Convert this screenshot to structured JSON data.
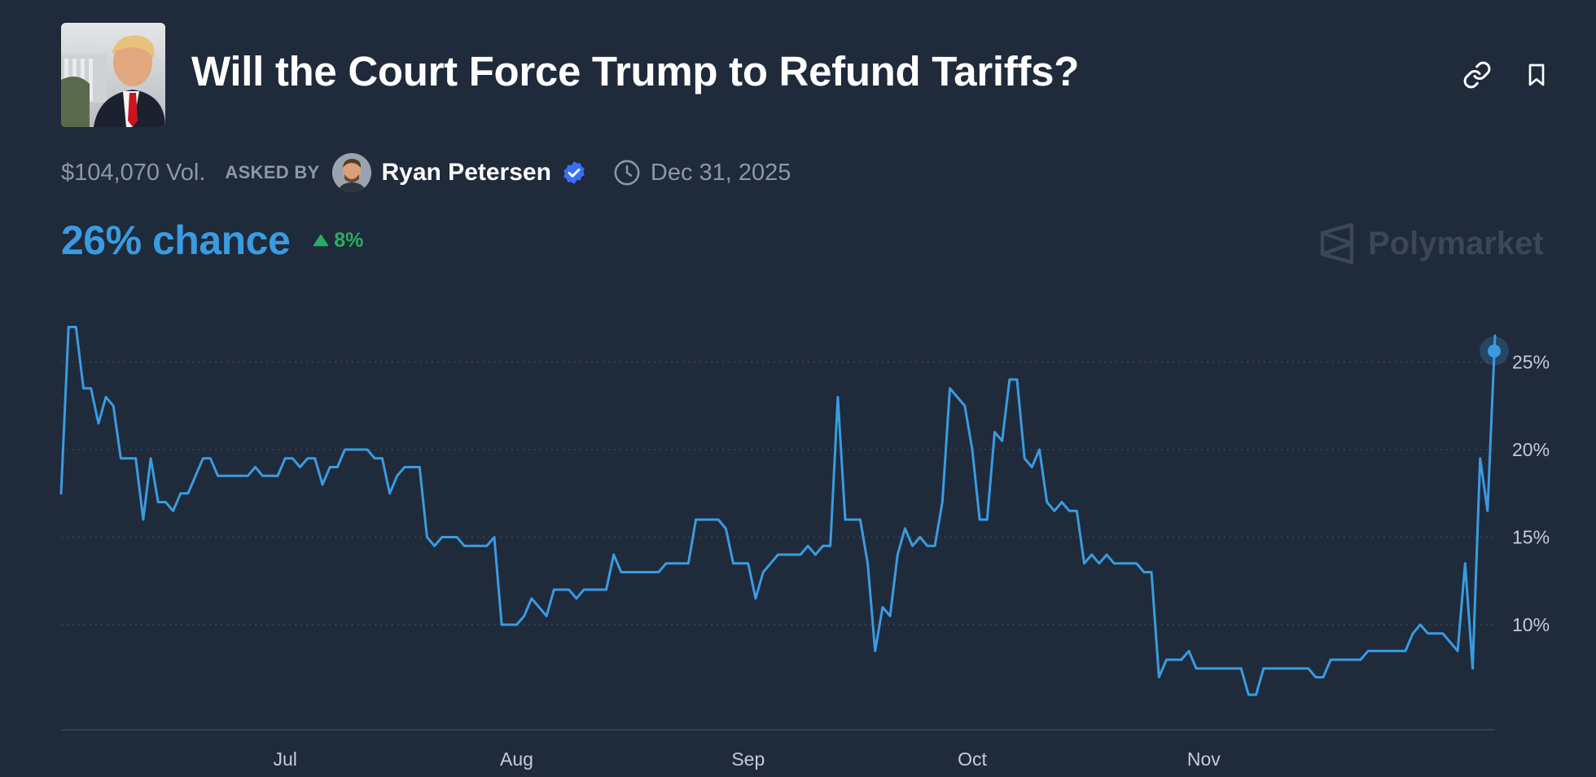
{
  "market": {
    "title": "Will the Court Force Trump to Refund Tariffs?",
    "volume": "$104,070 Vol.",
    "asked_by_label": "ASKED BY",
    "author": "Ryan Petersen",
    "end_date": "Dec 31, 2025",
    "chance": "26% chance",
    "change": "8%",
    "brand": "Polymarket"
  },
  "icons": {
    "link": "link-icon",
    "bookmark": "bookmark-icon",
    "verified": "verified-badge-icon",
    "clock": "clock-icon",
    "change": "triangle-up-icon",
    "brand": "polymarket-logo-icon"
  },
  "colors": {
    "background": "#1f2a3b",
    "accent": "#3a9be0",
    "positive": "#27ae60",
    "muted": "#8c98aa"
  },
  "chart_data": {
    "type": "line",
    "title": "",
    "xlabel": "",
    "ylabel": "",
    "x_ticks": [
      "Jul",
      "Aug",
      "Sep",
      "Oct",
      "Nov"
    ],
    "y_ticks": [
      "10%",
      "15%",
      "20%",
      "25%"
    ],
    "ylim": [
      4,
      28
    ],
    "grid": "horizontal dotted",
    "series": [
      {
        "color": "#3a9be0",
        "points": [
          [
            "Jun 1",
            17.5
          ],
          [
            "Jun 2",
            27
          ],
          [
            "Jun 3",
            27
          ],
          [
            "Jun 4",
            23.5
          ],
          [
            "Jun 5",
            23.5
          ],
          [
            "Jun 6",
            21.5
          ],
          [
            "Jun 7",
            23
          ],
          [
            "Jun 8",
            22.5
          ],
          [
            "Jun 9",
            19.5
          ],
          [
            "Jun 11",
            19.5
          ],
          [
            "Jun 12",
            16
          ],
          [
            "Jun 13",
            19.5
          ],
          [
            "Jun 14",
            17
          ],
          [
            "Jun 15",
            17
          ],
          [
            "Jun 16",
            16.5
          ],
          [
            "Jun 17",
            17.5
          ],
          [
            "Jun 18",
            17.5
          ],
          [
            "Jun 20",
            19.5
          ],
          [
            "Jun 21",
            19.5
          ],
          [
            "Jun 22",
            18.5
          ],
          [
            "Jun 26",
            18.5
          ],
          [
            "Jun 27",
            19
          ],
          [
            "Jun 28",
            18.5
          ],
          [
            "Jun 30",
            18.5
          ],
          [
            "Jul 1",
            19.5
          ],
          [
            "Jul 2",
            19.5
          ],
          [
            "Jul 3",
            19
          ],
          [
            "Jul 4",
            19.5
          ],
          [
            "Jul 5",
            19.5
          ],
          [
            "Jul 6",
            18
          ],
          [
            "Jul 7",
            19
          ],
          [
            "Jul 8",
            19
          ],
          [
            "Jul 9",
            20
          ],
          [
            "Jul 12",
            20
          ],
          [
            "Jul 13",
            19.5
          ],
          [
            "Jul 14",
            19.5
          ],
          [
            "Jul 15",
            17.5
          ],
          [
            "Jul 16",
            18.5
          ],
          [
            "Jul 17",
            19
          ],
          [
            "Jul 19",
            19
          ],
          [
            "Jul 20",
            15
          ],
          [
            "Jul 21",
            14.5
          ],
          [
            "Jul 22",
            15
          ],
          [
            "Jul 24",
            15
          ],
          [
            "Jul 25",
            14.5
          ],
          [
            "Jul 28",
            14.5
          ],
          [
            "Jul 29",
            15
          ],
          [
            "Jul 30",
            10
          ],
          [
            "Jul 31",
            10
          ],
          [
            "Aug 1",
            10
          ],
          [
            "Aug 2",
            10.5
          ],
          [
            "Aug 3",
            11.5
          ],
          [
            "Aug 4",
            11
          ],
          [
            "Aug 5",
            10.5
          ],
          [
            "Aug 6",
            12
          ],
          [
            "Aug 8",
            12
          ],
          [
            "Aug 9",
            11.5
          ],
          [
            "Aug 10",
            12
          ],
          [
            "Aug 12",
            12
          ],
          [
            "Aug 13",
            12
          ],
          [
            "Aug 14",
            14
          ],
          [
            "Aug 15",
            13
          ],
          [
            "Aug 20",
            13
          ],
          [
            "Aug 21",
            13.5
          ],
          [
            "Aug 24",
            13.5
          ],
          [
            "Aug 25",
            16
          ],
          [
            "Aug 28",
            16
          ],
          [
            "Aug 29",
            15.5
          ],
          [
            "Aug 30",
            13.5
          ],
          [
            "Sep 1",
            13.5
          ],
          [
            "Sep 2",
            11.5
          ],
          [
            "Sep 3",
            13
          ],
          [
            "Sep 4",
            13.5
          ],
          [
            "Sep 5",
            14
          ],
          [
            "Sep 8",
            14
          ],
          [
            "Sep 9",
            14.5
          ],
          [
            "Sep 10",
            14
          ],
          [
            "Sep 11",
            14.5
          ],
          [
            "Sep 12",
            14.5
          ],
          [
            "Sep 13",
            23
          ],
          [
            "Sep 14",
            16
          ],
          [
            "Sep 16",
            16
          ],
          [
            "Sep 17",
            13.5
          ],
          [
            "Sep 18",
            8.5
          ],
          [
            "Sep 19",
            11
          ],
          [
            "Sep 20",
            10.5
          ],
          [
            "Sep 21",
            14
          ],
          [
            "Sep 22",
            15.5
          ],
          [
            "Sep 23",
            14.5
          ],
          [
            "Sep 24",
            15
          ],
          [
            "Sep 25",
            14.5
          ],
          [
            "Sep 26",
            14.5
          ],
          [
            "Sep 27",
            17
          ],
          [
            "Sep 28",
            23.5
          ],
          [
            "Sep 29",
            23
          ],
          [
            "Sep 30",
            22.5
          ],
          [
            "Oct 1",
            20
          ],
          [
            "Oct 2",
            16
          ],
          [
            "Oct 3",
            16
          ],
          [
            "Oct 4",
            21
          ],
          [
            "Oct 5",
            20.5
          ],
          [
            "Oct 6",
            24
          ],
          [
            "Oct 7",
            24
          ],
          [
            "Oct 8",
            19.5
          ],
          [
            "Oct 9",
            19
          ],
          [
            "Oct 10",
            20
          ],
          [
            "Oct 11",
            17
          ],
          [
            "Oct 12",
            16.5
          ],
          [
            "Oct 13",
            17
          ],
          [
            "Oct 14",
            16.5
          ],
          [
            "Oct 15",
            16.5
          ],
          [
            "Oct 16",
            13.5
          ],
          [
            "Oct 17",
            14
          ],
          [
            "Oct 18",
            13.5
          ],
          [
            "Oct 19",
            14
          ],
          [
            "Oct 20",
            13.5
          ],
          [
            "Oct 23",
            13.5
          ],
          [
            "Oct 24",
            13
          ],
          [
            "Oct 25",
            13
          ],
          [
            "Oct 26",
            7
          ],
          [
            "Oct 27",
            8
          ],
          [
            "Oct 29",
            8
          ],
          [
            "Oct 30",
            8.5
          ],
          [
            "Oct 31",
            7.5
          ],
          [
            "Nov 6",
            7.5
          ],
          [
            "Nov 7",
            6
          ],
          [
            "Nov 8",
            6
          ],
          [
            "Nov 9",
            7.5
          ],
          [
            "Nov 15",
            7.5
          ],
          [
            "Nov 16",
            7
          ],
          [
            "Nov 17",
            7
          ],
          [
            "Nov 18",
            8
          ],
          [
            "Nov 22",
            8
          ],
          [
            "Nov 23",
            8.5
          ],
          [
            "Nov 28",
            8.5
          ],
          [
            "Nov 29",
            9.5
          ],
          [
            "Nov 30",
            10
          ],
          [
            "Dec 1",
            9.5
          ],
          [
            "Dec 3",
            9.5
          ],
          [
            "Dec 4",
            9
          ],
          [
            "Dec 5",
            8.5
          ],
          [
            "Dec 6",
            13.5
          ],
          [
            "Dec 7",
            7.5
          ],
          [
            "Dec 8",
            19.5
          ],
          [
            "Dec 9",
            16.5
          ],
          [
            "Dec 10",
            26.5
          ]
        ]
      }
    ],
    "current_value": 26
  }
}
